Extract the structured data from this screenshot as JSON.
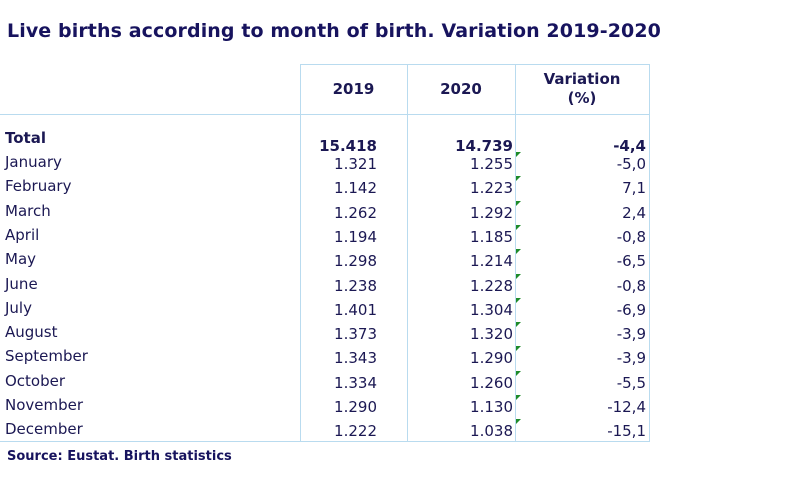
{
  "title": "Live births according to month of birth. Variation 2019-2020",
  "headers": {
    "col_2019": "2019",
    "col_2020": "2020",
    "col_variation": "Variation (%)"
  },
  "total": {
    "label": "Total",
    "v2019": "15.418",
    "v2020": "14.739",
    "variation": "-4,4"
  },
  "rows": [
    {
      "label": "January",
      "v2019": "1.321",
      "v2020": "1.255",
      "variation": "-5,0"
    },
    {
      "label": "February",
      "v2019": "1.142",
      "v2020": "1.223",
      "variation": "7,1"
    },
    {
      "label": "March",
      "v2019": "1.262",
      "v2020": "1.292",
      "variation": "2,4"
    },
    {
      "label": "April",
      "v2019": "1.194",
      "v2020": "1.185",
      "variation": "-0,8"
    },
    {
      "label": "May",
      "v2019": "1.298",
      "v2020": "1.214",
      "variation": "-6,5"
    },
    {
      "label": "June",
      "v2019": "1.238",
      "v2020": "1.228",
      "variation": "-0,8"
    },
    {
      "label": "July",
      "v2019": "1.401",
      "v2020": "1.304",
      "variation": "-6,9"
    },
    {
      "label": "August",
      "v2019": "1.373",
      "v2020": "1.320",
      "variation": "-3,9"
    },
    {
      "label": "September",
      "v2019": "1.343",
      "v2020": "1.290",
      "variation": "-3,9"
    },
    {
      "label": "October",
      "v2019": "1.334",
      "v2020": "1.260",
      "variation": "-5,5"
    },
    {
      "label": "November",
      "v2019": "1.290",
      "v2020": "1.130",
      "variation": "-12,4"
    },
    {
      "label": "December",
      "v2019": "1.222",
      "v2020": "1.038",
      "variation": "-15,1"
    }
  ],
  "source": "Source: Eustat. Birth statistics",
  "colors": {
    "title": "#17135e",
    "grid": "#b9dbef",
    "flag": "#1e8b2a"
  }
}
